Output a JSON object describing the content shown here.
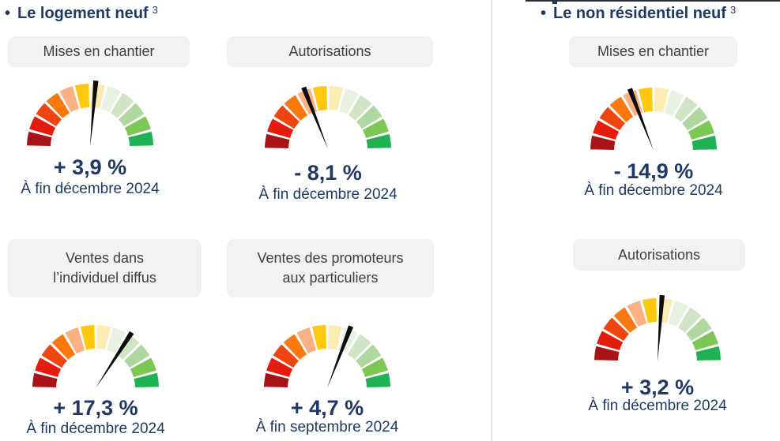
{
  "page": {
    "background": "#ffffff",
    "divider_color": "#e4e4e4",
    "top_strip_color": "#2b2e38"
  },
  "colors": {
    "navy_text": "#1f3864",
    "label_text": "#3f3f3f",
    "label_background": "#f2f2f2",
    "needle": "#0d0d0d"
  },
  "sections": [
    {
      "bullet": "•",
      "title": "Le logement neuf",
      "superscript": "3"
    },
    {
      "bullet": "•",
      "title": "Le non résidentiel neuf",
      "superscript": "3"
    }
  ],
  "gauge_style": {
    "segment_count": 12,
    "segment_colors": [
      "#a91318",
      "#e41c0e",
      "#ee4511",
      "#fa790f",
      "#fbb183",
      "#fec80e",
      "#fcecb4",
      "#e9f2e2",
      "#d0e5c4",
      "#aed8a0",
      "#7dc755",
      "#1fb255"
    ],
    "needle_color": "#0d0d0d"
  },
  "chart_data": [
    {
      "type": "gauge",
      "section": "Le logement neuf",
      "label": "Mises en chantier",
      "value_label": "+ 3,9 %",
      "value_numeric": 3.9,
      "period": "À fin décembre 2024",
      "needle_angle_deg": 5,
      "scale": "red (bad) to green (good), 12 segments over 180°"
    },
    {
      "type": "gauge",
      "section": "Le logement neuf",
      "label": "Autorisations",
      "value_label": "- 8,1 %",
      "value_numeric": -8.1,
      "period": "À fin décembre 2024",
      "needle_angle_deg": -21.5,
      "scale": "red (bad) to green (good), 12 segments over 180°"
    },
    {
      "type": "gauge",
      "section": "Le logement neuf",
      "label": "Ventes dans\nl’individuel diffus",
      "value_label": "+ 17,3 %",
      "value_numeric": 17.3,
      "period": "À fin décembre 2024",
      "needle_angle_deg": 33,
      "scale": "red (bad) to green (good), 12 segments over 180°"
    },
    {
      "type": "gauge",
      "section": "Le logement neuf",
      "label": "Ventes des promoteurs\naux particuliers",
      "value_label": "+ 4,7 %",
      "value_numeric": 4.7,
      "period": "À fin septembre 2024",
      "needle_angle_deg": 21,
      "scale": "red (bad) to green (good), 12 segments over 180°"
    },
    {
      "type": "gauge",
      "section": "Le non résidentiel neuf",
      "label": "Mises en chantier",
      "value_label": "- 14,9 %",
      "value_numeric": -14.9,
      "period": "À fin décembre 2024",
      "needle_angle_deg": -21,
      "scale": "red (bad) to green (good), 12 segments over 180°"
    },
    {
      "type": "gauge",
      "section": "Le non résidentiel neuf",
      "label": "Autorisations",
      "value_label": "+ 3,2 %",
      "value_numeric": 3.2,
      "period": "À fin décembre 2024",
      "needle_angle_deg": 4,
      "scale": "red (bad) to green (good), 12 segments over 180°"
    }
  ]
}
